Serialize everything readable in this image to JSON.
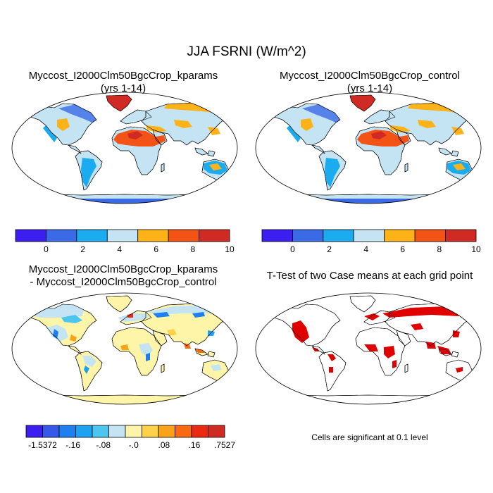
{
  "title": "JJA FSRNI (W/m^2)",
  "panels": {
    "top_left": {
      "line1": "Myccost_I2000Clm50BgcCrop_kparams",
      "line2": "(yrs 1-14)"
    },
    "top_right": {
      "line1": "Myccost_I2000Clm50BgcCrop_control",
      "line2": "(yrs 1-14)"
    },
    "bottom_left": {
      "line1": "Myccost_I2000Clm50BgcCrop_kparams",
      "line2": "- Myccost_I2000Clm50BgcCrop_control"
    },
    "bottom_right": {
      "line1": "T-Test of two Case means at each grid point"
    }
  },
  "colorbar_top": {
    "colors": [
      "#3d1ef0",
      "#3a6ae6",
      "#1aacee",
      "#c4e4f4",
      "#fdb217",
      "#f35314",
      "#d02a24"
    ],
    "labels": [
      "0",
      "2",
      "4",
      "6",
      "8",
      "10"
    ]
  },
  "colorbar_diff": {
    "colors": [
      "#3d1ef0",
      "#3558e8",
      "#1f7ef0",
      "#1ca2f0",
      "#4cc6ee",
      "#c4e4f4",
      "#fef5a8",
      "#fdd24a",
      "#fba318",
      "#f96a10",
      "#ec2a10",
      "#d02a24"
    ],
    "labels": [
      "-1.5372",
      "-.16",
      "-.08",
      "-.0",
      ".08",
      ".16",
      ".7527"
    ]
  },
  "significance_note": "Cells are significant at 0.1 level",
  "colors": {
    "significant": "#e00000",
    "ocean": "#ffffff",
    "coast": "#000000"
  }
}
